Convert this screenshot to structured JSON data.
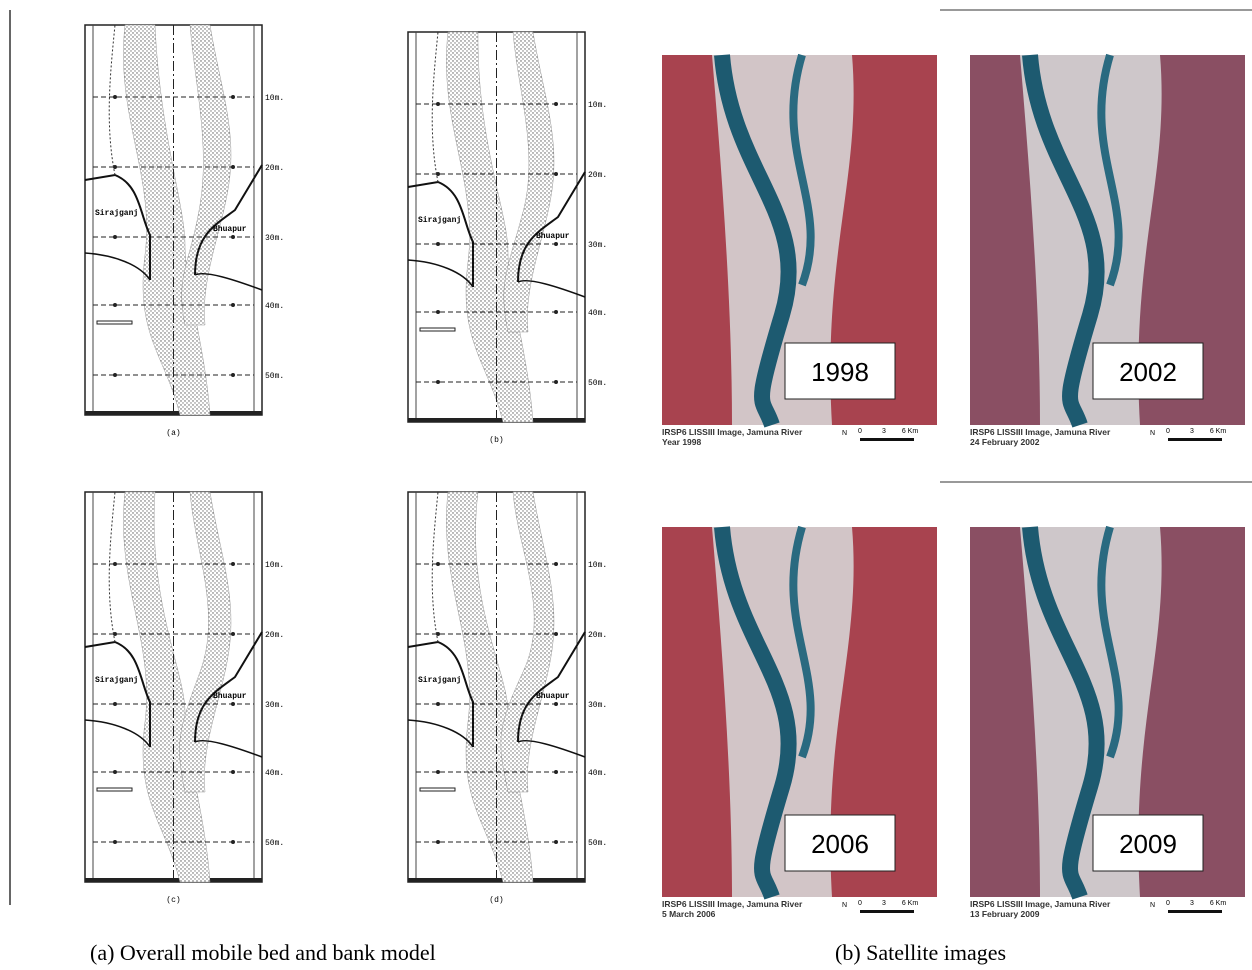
{
  "figure": {
    "models": [
      {
        "label": "(a)",
        "stations": [
          "10m.",
          "20m.",
          "30m.",
          "40m.",
          "50m."
        ],
        "left_town": "Sirajganj",
        "right_town": "Bhuapur"
      },
      {
        "label": "(b)",
        "stations": [
          "10m.",
          "20m.",
          "30m.",
          "40m.",
          "50m."
        ],
        "left_town": "Sirajganj",
        "right_town": "Bhuapur"
      },
      {
        "label": "(c)",
        "stations": [
          "10m.",
          "20m.",
          "30m.",
          "40m.",
          "50m."
        ],
        "left_town": "Sirajganj",
        "right_town": "Bhuapur"
      },
      {
        "label": "(d)",
        "stations": [
          "10m.",
          "20m.",
          "30m.",
          "40m.",
          "50m."
        ],
        "left_town": "Sirajganj",
        "right_town": "Bhuapur"
      }
    ],
    "satellite": [
      {
        "year": "1998",
        "source": "IRSP6 LISSIII Image, Jamuna River",
        "date": "Year 1998",
        "north": "N",
        "scale": [
          "0",
          "3",
          "6 Km"
        ]
      },
      {
        "year": "2002",
        "source": "IRSP6 LISSIII Image, Jamuna River",
        "date": "24 February 2002",
        "north": "N",
        "scale": [
          "0",
          "3",
          "6 Km"
        ]
      },
      {
        "year": "2006",
        "source": "IRSP6 LISSIII Image, Jamuna River",
        "date": "5 March 2006",
        "north": "N",
        "scale": [
          "0",
          "3",
          "6 Km"
        ]
      },
      {
        "year": "2009",
        "source": "IRSP6 LISSIII Image, Jamuna River",
        "date": "13 February 2009",
        "north": "N",
        "scale": [
          "0",
          "3",
          "6 Km"
        ]
      }
    ],
    "captions": [
      "(a) Overall mobile bed and bank model",
      "(b) Satellite images"
    ]
  }
}
